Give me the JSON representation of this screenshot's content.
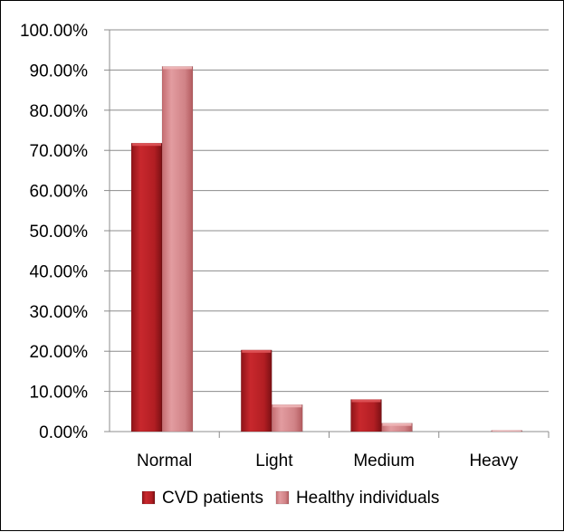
{
  "chart_data": {
    "type": "bar",
    "title": "",
    "xlabel": "",
    "ylabel": "",
    "categories": [
      "Normal",
      "Light",
      "Medium",
      "Heavy"
    ],
    "series": [
      {
        "name": "CVD patients",
        "values": [
          71.8,
          20.3,
          8.0,
          0.0
        ]
      },
      {
        "name": "Healthy individuals",
        "values": [
          90.9,
          6.7,
          2.1,
          0.3
        ]
      }
    ],
    "ylim": [
      0,
      100
    ],
    "yticks": [
      "0.00%",
      "10.00%",
      "20.00%",
      "30.00%",
      "40.00%",
      "50.00%",
      "60.00%",
      "70.00%",
      "80.00%",
      "90.00%",
      "100.00%"
    ],
    "grid": true,
    "legend": "bottom",
    "colors": {
      "CVD patients": "#c0282d",
      "Healthy individuals": "#d98a8c"
    }
  }
}
